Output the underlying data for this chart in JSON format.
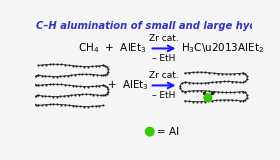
{
  "title": "C–H alumination of small and large hydroca",
  "title_color": "#3333bb",
  "rxn1_left_text": "CH",
  "rxn1_right_text": "H",
  "rxn1_above": "Zr cat.",
  "rxn1_below": "– EtH",
  "rxn2_above": "Zr cat.",
  "rxn2_below": "– EtH",
  "rxn2_reagent": "+  AlEt",
  "legend_label": "= Al",
  "arrow_color": "#1a1aff",
  "text_color": "#000000",
  "bg_color": "#f5f5f5",
  "chain_color": "#222222",
  "al_color": "#33cc00"
}
